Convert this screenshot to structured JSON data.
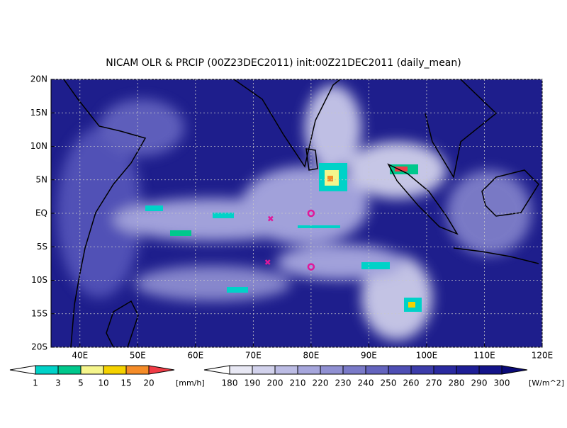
{
  "title": "NICAM OLR & PRCIP (00Z23DEC2011) init:00Z21DEC2011 (daily_mean)",
  "map": {
    "xlim": [
      35,
      120
    ],
    "ylim": [
      -20,
      20
    ],
    "xticks": [
      {
        "value": 40,
        "label": "40E"
      },
      {
        "value": 50,
        "label": "50E"
      },
      {
        "value": 60,
        "label": "60E"
      },
      {
        "value": 70,
        "label": "70E"
      },
      {
        "value": 80,
        "label": "80E"
      },
      {
        "value": 90,
        "label": "90E"
      },
      {
        "value": 100,
        "label": "100E"
      },
      {
        "value": 110,
        "label": "110E"
      },
      {
        "value": 120,
        "label": "120E"
      }
    ],
    "yticks": [
      {
        "value": -20,
        "label": "20S"
      },
      {
        "value": -15,
        "label": "15S"
      },
      {
        "value": -10,
        "label": "10S"
      },
      {
        "value": -5,
        "label": "5S"
      },
      {
        "value": 0,
        "label": "EQ"
      },
      {
        "value": 5,
        "label": "5N"
      },
      {
        "value": 10,
        "label": "10N"
      },
      {
        "value": 15,
        "label": "15N"
      },
      {
        "value": 20,
        "label": "20N"
      }
    ],
    "grid": true,
    "markers": [
      {
        "lon": 73,
        "lat": -0.8,
        "symbol": "x",
        "color": "#e0189a"
      },
      {
        "lon": 80,
        "lat": 0,
        "symbol": "o",
        "color": "#e0189a"
      },
      {
        "lon": 72.5,
        "lat": -7.3,
        "symbol": "x",
        "color": "#e0189a"
      },
      {
        "lon": 80,
        "lat": -8,
        "symbol": "o",
        "color": "#e0189a"
      }
    ]
  },
  "precip_scale": {
    "unit": "[mm/h]",
    "levels": [
      1,
      3,
      5,
      10,
      15,
      20
    ],
    "colors": [
      "#ffffff",
      "#00d2c8",
      "#00c88c",
      "#f5f58c",
      "#f5d200",
      "#f58c28",
      "#f03c46"
    ]
  },
  "olr_scale": {
    "unit": "[W/m^2]",
    "levels": [
      180,
      190,
      200,
      210,
      220,
      230,
      240,
      250,
      260,
      270,
      280,
      290,
      300
    ],
    "colors": [
      "#ffffff",
      "#e8e8f4",
      "#d2d2ec",
      "#bcbce4",
      "#a6a6dc",
      "#9090d2",
      "#7a7ac8",
      "#6464be",
      "#4e4eb4",
      "#3c3caa",
      "#2a2aa0",
      "#1e1e96",
      "#14148a",
      "#0a0a78"
    ]
  }
}
